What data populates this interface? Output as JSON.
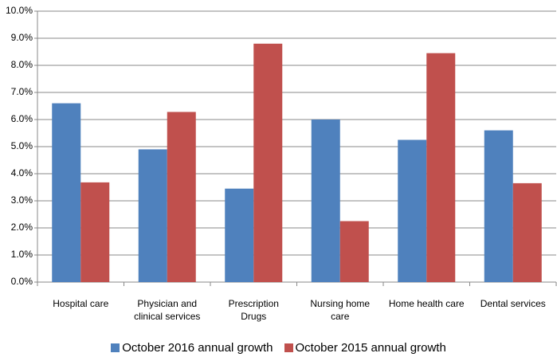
{
  "chart_data": {
    "type": "bar",
    "categories": [
      "Hospital care",
      "Physician and clinical services",
      "Prescription Drugs",
      "Nursing home care",
      "Home health care",
      "Dental services"
    ],
    "series": [
      {
        "name": "October 2016 annual growth",
        "color": "#4f81bd",
        "values": [
          6.6,
          4.9,
          3.45,
          6.0,
          5.25,
          5.6
        ]
      },
      {
        "name": "October 2015 annual growth",
        "color": "#c0504d",
        "values": [
          3.68,
          6.28,
          8.8,
          2.25,
          8.45,
          3.65
        ]
      }
    ],
    "ylim": [
      0,
      10
    ],
    "yticks": [
      {
        "value": 0,
        "label": "0.0%"
      },
      {
        "value": 1,
        "label": "1.0%"
      },
      {
        "value": 2,
        "label": "2.0%"
      },
      {
        "value": 3,
        "label": "3.0%"
      },
      {
        "value": 4,
        "label": "4.0%"
      },
      {
        "value": 5,
        "label": "5.0%"
      },
      {
        "value": 6,
        "label": "6.0%"
      },
      {
        "value": 7,
        "label": "7.0%"
      },
      {
        "value": 8,
        "label": "8.0%"
      },
      {
        "value": 9,
        "label": "9.0%"
      },
      {
        "value": 10,
        "label": "10.0%"
      }
    ],
    "grid": true
  }
}
